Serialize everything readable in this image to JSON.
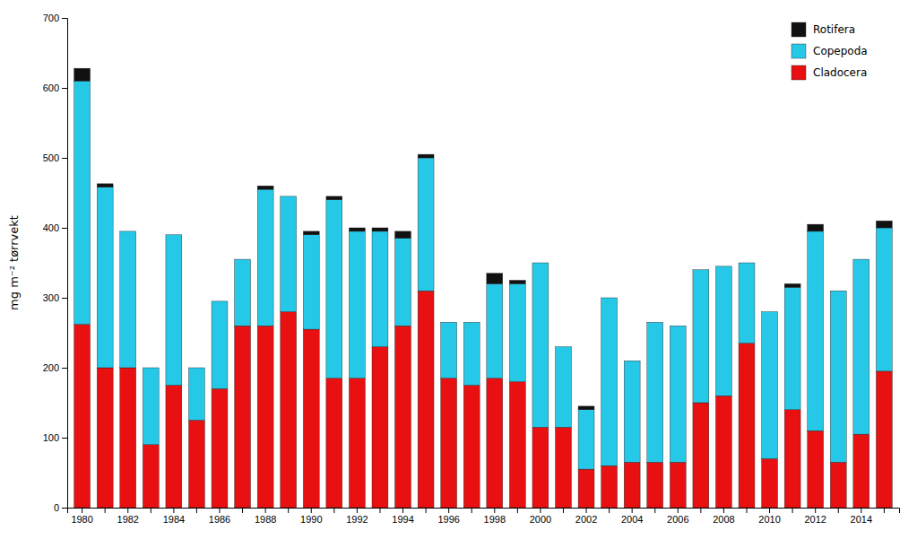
{
  "chart_data": {
    "type": "bar",
    "ylabel": "mg m⁻² tørrvekt",
    "categories": [
      "1980",
      null,
      "1982",
      null,
      "1984",
      null,
      "1986",
      null,
      "1988",
      null,
      "1990",
      null,
      "1992",
      null,
      "1994",
      null,
      "1996",
      null,
      "1998",
      null,
      "2000",
      null,
      "2002",
      null,
      "2004",
      null,
      "2006",
      null,
      "2008",
      null,
      "2010",
      null,
      "2012",
      null,
      "2014",
      null
    ],
    "series": [
      {
        "name": "Cladocera",
        "color": "#E81010",
        "values": [
          262,
          200,
          200,
          90,
          175,
          125,
          170,
          260,
          260,
          280,
          255,
          185,
          185,
          230,
          260,
          310,
          185,
          175,
          185,
          180,
          115,
          115,
          55,
          60,
          65,
          65,
          65,
          150,
          160,
          235,
          70,
          140,
          110,
          65,
          105,
          195
        ]
      },
      {
        "name": "Copepoda",
        "color": "#26C8E8",
        "values": [
          348,
          258,
          195,
          110,
          215,
          75,
          125,
          95,
          195,
          165,
          135,
          255,
          210,
          165,
          125,
          190,
          80,
          90,
          135,
          140,
          235,
          115,
          85,
          240,
          145,
          200,
          195,
          190,
          185,
          115,
          210,
          175,
          285,
          245,
          250,
          205
        ]
      },
      {
        "name": "Rotifera",
        "color": "#111111",
        "values": [
          18,
          5,
          0,
          0,
          0,
          0,
          0,
          0,
          5,
          0,
          5,
          5,
          5,
          5,
          10,
          5,
          0,
          0,
          15,
          5,
          0,
          0,
          5,
          0,
          0,
          0,
          0,
          0,
          0,
          0,
          0,
          5,
          10,
          0,
          0,
          10
        ]
      }
    ],
    "ylim": [
      0,
      700
    ],
    "yticks": [
      0,
      100,
      200,
      300,
      400,
      500,
      600,
      700
    ],
    "stacked": true,
    "legend": "upper right",
    "grid": false
  }
}
